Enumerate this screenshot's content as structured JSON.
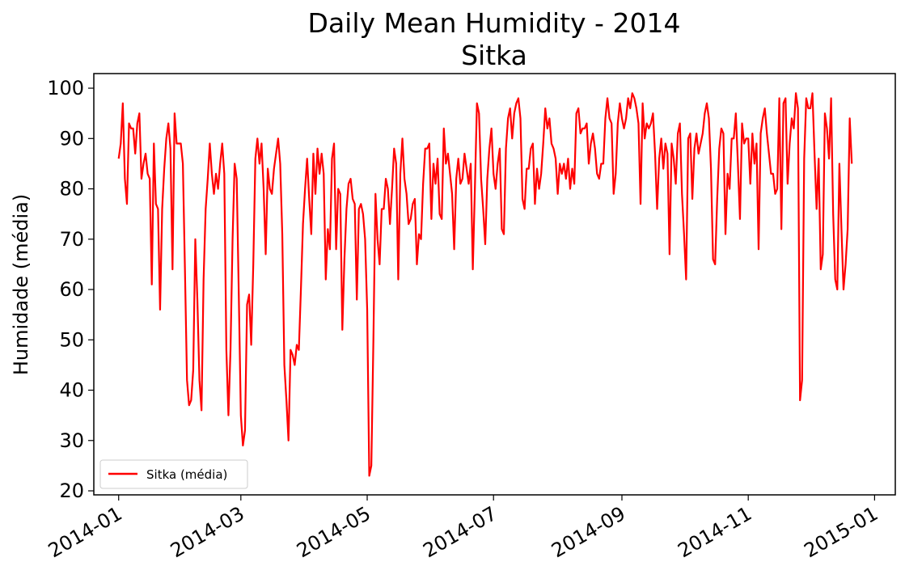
{
  "chart_data": {
    "type": "line",
    "title": "Daily Mean Humidity - 2014",
    "subtitle": "Sitka",
    "xlabel": "",
    "ylabel": "Humidade (média)",
    "x_start": "2014-01-01",
    "x_step": "1 day",
    "xlim": [
      "2013-12-20",
      "2015-01-11"
    ],
    "ylim": [
      19.2,
      102.9
    ],
    "yticks": [
      20,
      30,
      40,
      50,
      60,
      70,
      80,
      90,
      100
    ],
    "xticks": [
      "2014-01",
      "2014-03",
      "2014-05",
      "2014-07",
      "2014-09",
      "2014-11",
      "2015-01"
    ],
    "grid": false,
    "legend_position": "lower-left",
    "series": [
      {
        "name": "Sitka (média)",
        "color": "#ff0000",
        "values": [
          86,
          89,
          97,
          82,
          77,
          93,
          92,
          92,
          87,
          93,
          95,
          82,
          85,
          87,
          83,
          82,
          61,
          89,
          77,
          76,
          56,
          76,
          84,
          90,
          93,
          88,
          64,
          95,
          89,
          89,
          89,
          85,
          64,
          42,
          37,
          38,
          44,
          70,
          58,
          42,
          36,
          62,
          76,
          82,
          89,
          83,
          79,
          83,
          80,
          85,
          89,
          83,
          48,
          35,
          48,
          70,
          85,
          82,
          59,
          35,
          29,
          32,
          57,
          59,
          49,
          65,
          86,
          90,
          85,
          89,
          80,
          67,
          84,
          80,
          79,
          84,
          87,
          90,
          85,
          71,
          45,
          38,
          30,
          48,
          47,
          45,
          49,
          48,
          60,
          73,
          80,
          86,
          78,
          71,
          87,
          79,
          88,
          83,
          87,
          83,
          62,
          72,
          68,
          86,
          89,
          68,
          80,
          79,
          52,
          66,
          76,
          81,
          82,
          78,
          77,
          58,
          76,
          77,
          75,
          70,
          56,
          23,
          25,
          50,
          79,
          70,
          65,
          76,
          76,
          82,
          80,
          73,
          80,
          88,
          85,
          62,
          83,
          90,
          82,
          79,
          73,
          74,
          77,
          78,
          65,
          71,
          70,
          81,
          88,
          88,
          89,
          74,
          85,
          81,
          86,
          75,
          74,
          92,
          85,
          87,
          83,
          79,
          68,
          82,
          86,
          81,
          82,
          87,
          84,
          81,
          85,
          64,
          80,
          97,
          95,
          82,
          76,
          69,
          82,
          88,
          92,
          83,
          80,
          85,
          88,
          72,
          71,
          88,
          94,
          96,
          90,
          95,
          97,
          98,
          94,
          78,
          76,
          84,
          84,
          88,
          89,
          77,
          84,
          80,
          83,
          89,
          96,
          92,
          94,
          89,
          88,
          86,
          79,
          85,
          83,
          85,
          82,
          86,
          80,
          84,
          81,
          95,
          96,
          91,
          92,
          92,
          93,
          85,
          89,
          91,
          88,
          83,
          82,
          85,
          85,
          94,
          98,
          94,
          93,
          79,
          83,
          93,
          97,
          94,
          92,
          94,
          98,
          96,
          99,
          98,
          96,
          93,
          77,
          97,
          90,
          93,
          92,
          93,
          95,
          87,
          76,
          86,
          90,
          84,
          89,
          87,
          67,
          89,
          86,
          81,
          91,
          93,
          79,
          71,
          62,
          90,
          91,
          78,
          88,
          91,
          87,
          89,
          91,
          95,
          97,
          94,
          84,
          66,
          65,
          78,
          88,
          92,
          91,
          71,
          83,
          80,
          90,
          90,
          95,
          85,
          74,
          93,
          89,
          90,
          90,
          81,
          91,
          85,
          89,
          68,
          91,
          94,
          96,
          91,
          87,
          83,
          83,
          79,
          80,
          98,
          72,
          97,
          98,
          81,
          89,
          94,
          92,
          99,
          96,
          38,
          42,
          86,
          98,
          96,
          96,
          99,
          87,
          76,
          86,
          64,
          67,
          95,
          92,
          86,
          98,
          75,
          62,
          60,
          85,
          72,
          60,
          65,
          72,
          94,
          85
        ]
      }
    ]
  }
}
